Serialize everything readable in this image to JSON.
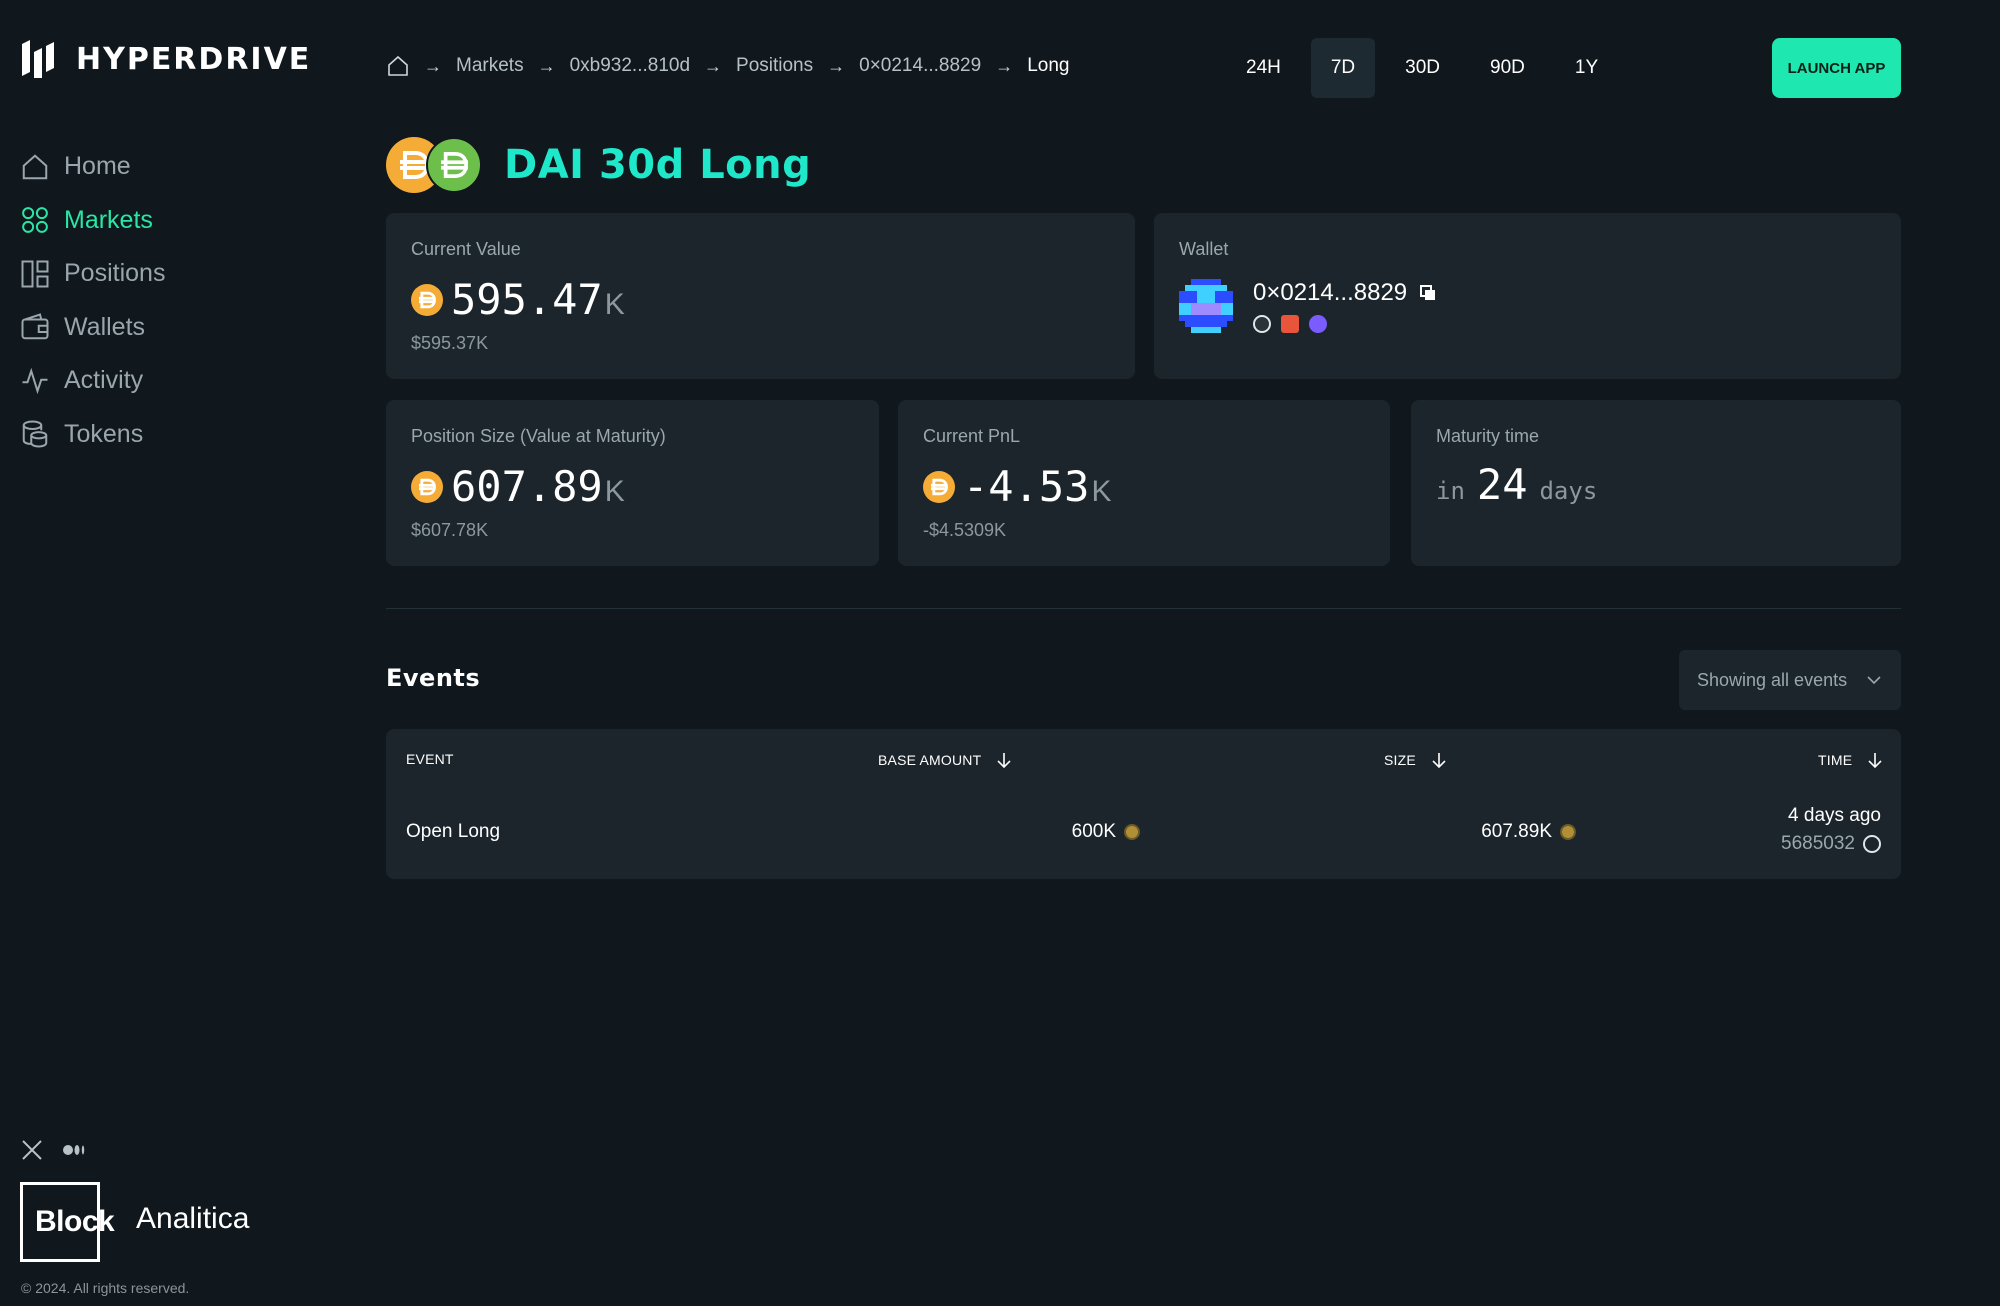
{
  "brand": {
    "name": "HYPERDRIVE"
  },
  "sidebar": {
    "items": [
      {
        "label": "Home",
        "icon": "home-icon",
        "active": false
      },
      {
        "label": "Markets",
        "icon": "grid-icon",
        "active": true
      },
      {
        "label": "Positions",
        "icon": "layout-icon",
        "active": false
      },
      {
        "label": "Wallets",
        "icon": "wallet-icon",
        "active": false
      },
      {
        "label": "Activity",
        "icon": "activity-icon",
        "active": false
      },
      {
        "label": "Tokens",
        "icon": "coins-icon",
        "active": false
      }
    ],
    "social": [
      "x-icon",
      "medium-icon"
    ],
    "footer_brand": {
      "bold": "Block",
      "light": "Analitica"
    },
    "copyright": "© 2024. All rights reserved."
  },
  "breadcrumb": {
    "items": [
      "Markets",
      "0xb932...810d",
      "Positions",
      "0×0214...8829",
      "Long"
    ]
  },
  "time_range": {
    "options": [
      "24H",
      "7D",
      "30D",
      "90D",
      "1Y"
    ],
    "selected": "7D"
  },
  "launch_button": "LAUNCH APP",
  "title": "DAI 30d Long",
  "cards": {
    "current_value": {
      "label": "Current Value",
      "value": "595.47",
      "suffix": "K",
      "usd": "$595.37K"
    },
    "wallet": {
      "label": "Wallet",
      "address": "0×0214...8829"
    },
    "position_size": {
      "label": "Position Size (Value at Maturity)",
      "value": "607.89",
      "suffix": "K",
      "usd": "$607.78K"
    },
    "pnl": {
      "label": "Current PnL",
      "value": "-4.53",
      "suffix": "K",
      "usd": "-$4.5309K"
    },
    "maturity": {
      "label": "Maturity time",
      "prefix": "in",
      "value": "24",
      "unit": "days"
    }
  },
  "events": {
    "title": "Events",
    "filter": "Showing all events",
    "columns": [
      "EVENT",
      "BASE AMOUNT",
      "SIZE",
      "TIME"
    ],
    "rows": [
      {
        "event": "Open Long",
        "base_amount": "600K",
        "size": "607.89K",
        "time": "4 days ago",
        "block": "5685032"
      }
    ]
  },
  "colors": {
    "accent": "#1ee8b0",
    "title": "#1ee8c9",
    "background": "#10171d",
    "card": "#1b252b",
    "dai": "#f5ac37"
  }
}
